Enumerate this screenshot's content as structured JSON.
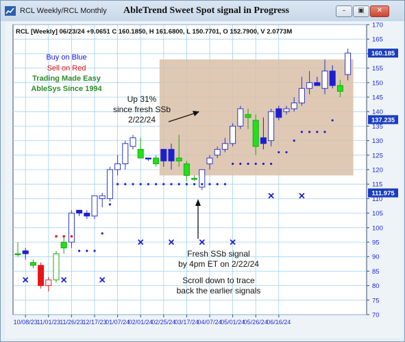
{
  "window": {
    "title": "RCL Weekly/RCL Monthly",
    "buttons": [
      "minimize",
      "restore",
      "close"
    ]
  },
  "chart_title": "AbleTrend Sweet Spot signal in Progress",
  "quote_header": "RCL [Weekly] 06/23/24 +9.0651 C 160.1850, H 161.6800, L 150.7701, O 152.7900, V 2.0773M",
  "legend": {
    "buy": "Buy on Blue",
    "sell": "Sell on Red",
    "easy": "Trading Made Easy",
    "since": "AbleSys Since 1994"
  },
  "annotations": {
    "up_line1": "Up 31%",
    "up_line2": "since fresh SSb",
    "up_line3": "2/22/24",
    "fresh_line1": "Fresh SSb signal",
    "fresh_line2": "by 4pm ET on 2/22/24",
    "scroll_line1": "Scroll down to trace",
    "scroll_line2": "back the earlier signals"
  },
  "price_tags": [
    {
      "label": "160.185",
      "value": 160.185,
      "color": "#1a3dbf"
    },
    {
      "label": "137.235",
      "value": 137.235,
      "color": "#1a3dbf"
    },
    {
      "label": "111.975",
      "value": 111.975,
      "color": "#1a3dbf"
    }
  ],
  "colors": {
    "blue": "#1c1fd0",
    "red": "#e8141a",
    "green": "#22e01a",
    "outline_blue": "#2a35c4",
    "grid": "#9fd0f0",
    "sweet_spot": "#d9bfa8",
    "buy_text": "#1515d8",
    "sell_text": "#e01010",
    "easy_text": "#2f8a2a"
  },
  "chart_data": {
    "type": "candlestick",
    "ylim": [
      70,
      170
    ],
    "yticks": [
      70,
      75,
      80,
      85,
      90,
      95,
      100,
      105,
      110,
      115,
      120,
      125,
      130,
      135,
      140,
      145,
      150,
      155,
      160,
      165,
      170
    ],
    "x_labels": [
      "10/08/23",
      "11/01/23",
      "11/26/23",
      "12/17/23",
      "01/07/24",
      "02/01/24",
      "02/25/24",
      "03/17/24",
      "04/07/24",
      "05/01/24",
      "05/26/24",
      "06/16/24"
    ],
    "x_label_bar_index": [
      1,
      4,
      7,
      10,
      13,
      16,
      19,
      22,
      25,
      28,
      31,
      34
    ],
    "bars": [
      {
        "o": 91,
        "h": 95,
        "l": 90,
        "c": 91,
        "color": "green"
      },
      {
        "o": 91,
        "h": 93,
        "l": 89,
        "c": 92,
        "color": "blue"
      },
      {
        "o": 88,
        "h": 89,
        "l": 86,
        "c": 87,
        "color": "green"
      },
      {
        "o": 87,
        "h": 88,
        "l": 79,
        "c": 80,
        "color": "red"
      },
      {
        "o": 80,
        "h": 83,
        "l": 78,
        "c": 82,
        "color": "outline_red"
      },
      {
        "o": 82,
        "h": 92,
        "l": 81,
        "c": 91,
        "color": "outline_green"
      },
      {
        "o": 93,
        "h": 97,
        "l": 91,
        "c": 95,
        "color": "green"
      },
      {
        "o": 95,
        "h": 106,
        "l": 93,
        "c": 105,
        "color": "outline_blue"
      },
      {
        "o": 105,
        "h": 106,
        "l": 104,
        "c": 106,
        "color": "blue"
      },
      {
        "o": 104,
        "h": 106,
        "l": 103,
        "c": 105,
        "color": "blue"
      },
      {
        "o": 104,
        "h": 111,
        "l": 103,
        "c": 111,
        "color": "outline_blue"
      },
      {
        "o": 110,
        "h": 112,
        "l": 107,
        "c": 111,
        "color": "outline_blue"
      },
      {
        "o": 110,
        "h": 121,
        "l": 109,
        "c": 120,
        "color": "outline_blue"
      },
      {
        "o": 120,
        "h": 125,
        "l": 118,
        "c": 122,
        "color": "outline_blue"
      },
      {
        "o": 122,
        "h": 130,
        "l": 120,
        "c": 129,
        "color": "outline_blue"
      },
      {
        "o": 128,
        "h": 132,
        "l": 127,
        "c": 131,
        "color": "outline_blue"
      },
      {
        "o": 127,
        "h": 131,
        "l": 125,
        "c": 124,
        "color": "green"
      },
      {
        "o": 124,
        "h": 124,
        "l": 123,
        "c": 124,
        "color": "blue"
      },
      {
        "o": 124,
        "h": 125,
        "l": 121,
        "c": 122,
        "color": "green"
      },
      {
        "o": 123,
        "h": 127,
        "l": 121,
        "c": 127,
        "color": "blue"
      },
      {
        "o": 127,
        "h": 129,
        "l": 120,
        "c": 123,
        "color": "blue"
      },
      {
        "o": 123,
        "h": 132,
        "l": 121,
        "c": 124,
        "color": "green"
      },
      {
        "o": 122,
        "h": 123,
        "l": 116,
        "c": 118,
        "color": "green"
      },
      {
        "o": 117,
        "h": 118,
        "l": 116,
        "c": 117,
        "color": "green"
      },
      {
        "o": 114,
        "h": 120,
        "l": 113,
        "c": 120,
        "color": "outline_blue"
      },
      {
        "o": 122,
        "h": 125,
        "l": 120,
        "c": 124,
        "color": "outline_blue"
      },
      {
        "o": 125,
        "h": 128,
        "l": 124,
        "c": 127,
        "color": "outline_blue"
      },
      {
        "o": 127,
        "h": 131,
        "l": 126,
        "c": 129,
        "color": "outline_blue"
      },
      {
        "o": 129,
        "h": 136,
        "l": 128,
        "c": 135,
        "color": "outline_blue"
      },
      {
        "o": 135,
        "h": 142,
        "l": 134,
        "c": 141,
        "color": "outline_blue"
      },
      {
        "o": 139,
        "h": 141,
        "l": 134,
        "c": 138,
        "color": "green"
      },
      {
        "o": 137,
        "h": 139,
        "l": 125,
        "c": 128,
        "color": "green"
      },
      {
        "o": 129,
        "h": 138,
        "l": 127,
        "c": 131,
        "color": "blue"
      },
      {
        "o": 130,
        "h": 141,
        "l": 128,
        "c": 140,
        "color": "outline_blue"
      },
      {
        "o": 138,
        "h": 142,
        "l": 137,
        "c": 141,
        "color": "blue"
      },
      {
        "o": 140,
        "h": 142,
        "l": 139,
        "c": 141,
        "color": "outline_blue"
      },
      {
        "o": 141,
        "h": 145,
        "l": 140,
        "c": 143,
        "color": "outline_blue"
      },
      {
        "o": 143,
        "h": 152,
        "l": 142,
        "c": 148,
        "color": "outline_blue"
      },
      {
        "o": 148,
        "h": 154,
        "l": 146,
        "c": 150,
        "color": "outline_blue"
      },
      {
        "o": 150,
        "h": 152,
        "l": 149,
        "c": 149,
        "color": "blue"
      },
      {
        "o": 148,
        "h": 158,
        "l": 146,
        "c": 154,
        "color": "outline_blue"
      },
      {
        "o": 154,
        "h": 156,
        "l": 148,
        "c": 149,
        "color": "blue"
      },
      {
        "o": 149,
        "h": 151,
        "l": 145,
        "c": 147,
        "color": "green"
      },
      {
        "o": 152.79,
        "h": 161.68,
        "l": 150.7701,
        "c": 160.185,
        "color": "outline_blue"
      }
    ],
    "sell_stops": [
      {
        "i": 5,
        "v": 97
      },
      {
        "i": 6,
        "v": 97
      },
      {
        "i": 7,
        "v": 97
      }
    ],
    "buy_stops": [
      {
        "i": 8,
        "v": 92
      },
      {
        "i": 9,
        "v": 92
      },
      {
        "i": 10,
        "v": 92
      },
      {
        "i": 11,
        "v": 98
      },
      {
        "i": 12,
        "v": 108
      },
      {
        "i": 13,
        "v": 115
      },
      {
        "i": 14,
        "v": 115
      },
      {
        "i": 15,
        "v": 115
      },
      {
        "i": 16,
        "v": 115
      },
      {
        "i": 17,
        "v": 115
      },
      {
        "i": 18,
        "v": 115
      },
      {
        "i": 19,
        "v": 115
      },
      {
        "i": 20,
        "v": 115
      },
      {
        "i": 21,
        "v": 115
      },
      {
        "i": 22,
        "v": 115
      },
      {
        "i": 23,
        "v": 115
      },
      {
        "i": 24,
        "v": 115
      },
      {
        "i": 25,
        "v": 115
      },
      {
        "i": 26,
        "v": 115
      },
      {
        "i": 27,
        "v": 115
      },
      {
        "i": 28,
        "v": 122
      },
      {
        "i": 29,
        "v": 122
      },
      {
        "i": 30,
        "v": 122
      },
      {
        "i": 31,
        "v": 122
      },
      {
        "i": 32,
        "v": 122
      },
      {
        "i": 33,
        "v": 122
      },
      {
        "i": 34,
        "v": 126
      },
      {
        "i": 35,
        "v": 126
      },
      {
        "i": 36,
        "v": 130
      },
      {
        "i": 37,
        "v": 133
      },
      {
        "i": 38,
        "v": 133
      },
      {
        "i": 39,
        "v": 133
      },
      {
        "i": 40,
        "v": 133
      },
      {
        "i": 41,
        "v": 137
      }
    ],
    "x_marks": [
      {
        "i": 1,
        "v": 82
      },
      {
        "i": 6,
        "v": 82
      },
      {
        "i": 11,
        "v": 82
      },
      {
        "i": 16,
        "v": 95
      },
      {
        "i": 20,
        "v": 95
      },
      {
        "i": 24,
        "v": 95
      },
      {
        "i": 28,
        "v": 95
      },
      {
        "i": 33,
        "v": 111
      },
      {
        "i": 37,
        "v": 111
      }
    ],
    "sweet_spot_box": {
      "i_start": 19,
      "i_end": 43,
      "low": 118,
      "high": 158
    }
  }
}
